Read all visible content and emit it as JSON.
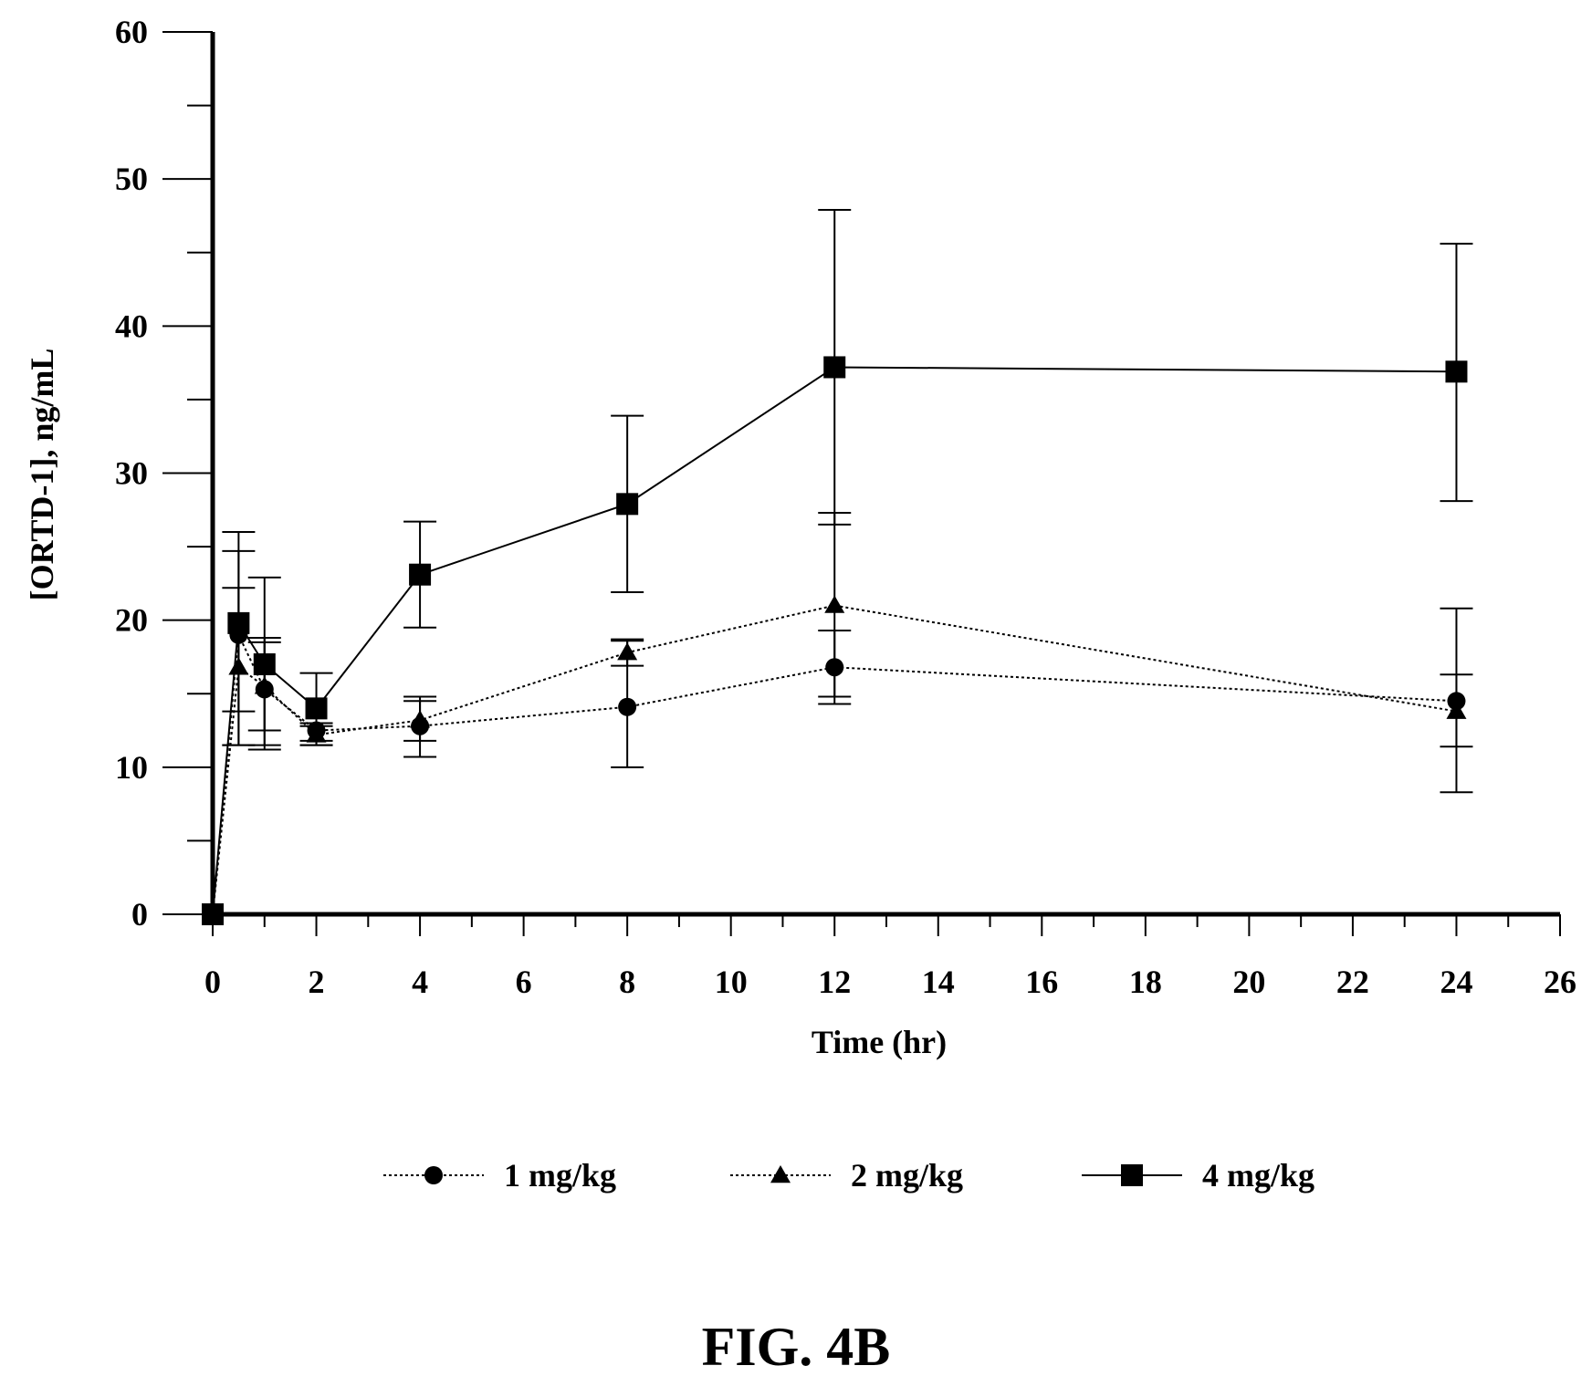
{
  "figure_label": "FIG. 4B",
  "chart_data": {
    "type": "line",
    "title": "",
    "xlabel": "Time (hr)",
    "ylabel": "[ORTD-1], ng/mL",
    "xlim": [
      0,
      26
    ],
    "ylim": [
      0,
      60
    ],
    "x_major_ticks": [
      0,
      2,
      4,
      6,
      8,
      10,
      12,
      14,
      16,
      18,
      20,
      22,
      24,
      26
    ],
    "x_tick_labels": [
      "0",
      "2",
      "4",
      "6",
      "8",
      "10",
      "12",
      "14",
      "16",
      "18",
      "20",
      "22",
      "24",
      "26"
    ],
    "y_major_ticks": [
      0,
      10,
      20,
      30,
      40,
      50,
      60
    ],
    "y_tick_labels": [
      "0",
      "10",
      "20",
      "30",
      "40",
      "50",
      "60"
    ],
    "grid": false,
    "legend_position": "bottom",
    "series": [
      {
        "name": "1 mg/kg",
        "marker": "circle",
        "line_style": "dotted",
        "x": [
          0,
          0.5,
          1,
          2,
          4,
          8,
          12,
          24
        ],
        "y": [
          0,
          19.0,
          15.3,
          12.5,
          12.8,
          14.1,
          16.8,
          14.5
        ],
        "err_low": [
          0,
          11.5,
          11.5,
          11.5,
          10.7,
          10.0,
          14.3,
          8.3
        ],
        "err_high": [
          0,
          26.0,
          18.5,
          13.0,
          14.8,
          18.6,
          19.3,
          20.8
        ]
      },
      {
        "name": "2 mg/kg",
        "marker": "triangle",
        "line_style": "dotted",
        "x": [
          0,
          0.5,
          1,
          2,
          4,
          8,
          12,
          24
        ],
        "y": [
          0,
          16.8,
          15.5,
          12.2,
          13.2,
          17.8,
          21.0,
          13.8
        ],
        "err_low": [
          0,
          11.5,
          12.5,
          11.8,
          11.8,
          16.9,
          14.8,
          11.4
        ],
        "err_high": [
          0,
          22.2,
          18.8,
          12.8,
          14.5,
          18.7,
          27.3,
          16.3
        ]
      },
      {
        "name": "4 mg/kg",
        "marker": "square",
        "line_style": "solid",
        "x": [
          0,
          0.5,
          1,
          2,
          4,
          8,
          12,
          24
        ],
        "y": [
          0,
          19.8,
          17.0,
          14.0,
          23.1,
          27.9,
          37.2,
          36.9
        ],
        "err_low": [
          0,
          13.8,
          11.2,
          11.5,
          19.5,
          21.9,
          26.5,
          28.1
        ],
        "err_high": [
          0,
          24.7,
          22.9,
          16.4,
          26.7,
          33.9,
          47.9,
          45.6
        ]
      }
    ]
  }
}
